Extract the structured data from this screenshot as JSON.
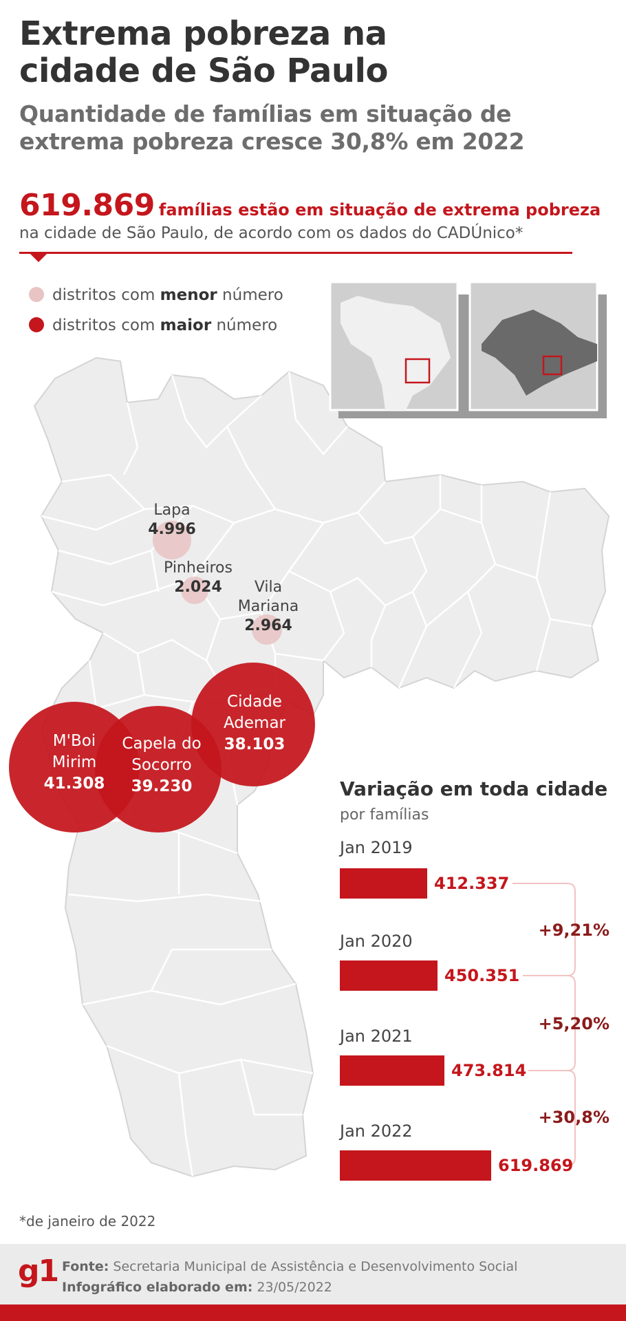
{
  "header": {
    "title_line1": "Extrema pobreza na",
    "title_line2": "cidade de São Paulo",
    "subtitle_line1": "Quantidade de famílias em situação de",
    "subtitle_line2": "extrema pobreza cresce 30,8% em 2022"
  },
  "highlight": {
    "number": "619.869",
    "text": "famílias estão em situação de extrema pobreza",
    "subtext": "na cidade de São Paulo, de acordo com os dados do CADÚnico*"
  },
  "legend": {
    "low_prefix": "distritos com ",
    "low_bold": "menor",
    "low_suffix": " número",
    "high_prefix": "distritos com ",
    "high_bold": "maior",
    "high_suffix": " número"
  },
  "colors": {
    "accent": "#c4161c",
    "low_bubble": "#e8c4c4",
    "map_fill": "#ededee",
    "map_stroke": "#ffffff"
  },
  "districts_low": [
    {
      "name_line1": "Lapa",
      "name_line2": "",
      "value": "4.996"
    },
    {
      "name_line1": "Pinheiros",
      "name_line2": "",
      "value": "2.024"
    },
    {
      "name_line1": "Vila",
      "name_line2": "Mariana",
      "value": "2.964"
    }
  ],
  "districts_high": [
    {
      "name_line1": "M'Boi",
      "name_line2": "Mirim",
      "value": "41.308"
    },
    {
      "name_line1": "Capela do",
      "name_line2": "Socorro",
      "value": "39.230"
    },
    {
      "name_line1": "Cidade",
      "name_line2": "Ademar",
      "value": "38.103"
    }
  ],
  "variation": {
    "title": "Variação em toda cidade",
    "subtitle": "por famílias",
    "years": [
      {
        "label": "Jan 2019",
        "value": 412337,
        "value_label": "412.337"
      },
      {
        "label": "Jan 2020",
        "value": 450351,
        "value_label": "450.351"
      },
      {
        "label": "Jan 2021",
        "value": 473814,
        "value_label": "473.814"
      },
      {
        "label": "Jan 2022",
        "value": 619869,
        "value_label": "619.869"
      }
    ],
    "changes": [
      "+9,21%",
      "+5,20%",
      "+30,8%"
    ]
  },
  "footnote": "*de janeiro de 2022",
  "footer": {
    "logo": "g1",
    "source_label": "Fonte:",
    "source_text": "Secretaria Municipal de Assistência e Desenvolvimento Social",
    "date_label": "Infográfico elaborado em:",
    "date_text": "23/05/2022"
  }
}
